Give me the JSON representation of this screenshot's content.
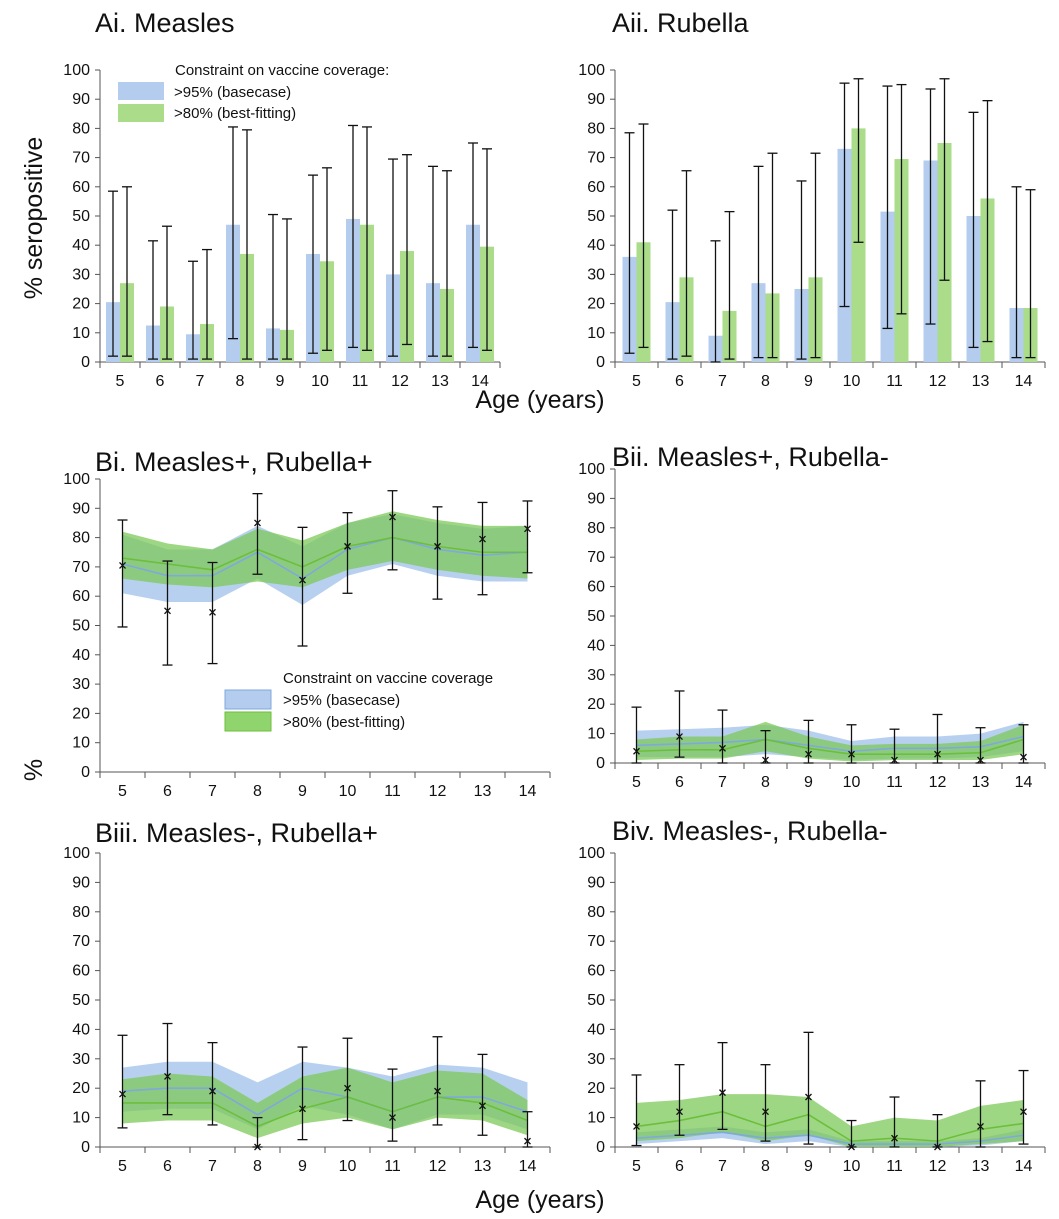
{
  "figure": {
    "ylabel_top": "% seropositive",
    "ylabel_bottom": "%",
    "xlabel_top": "Age (years)",
    "xlabel_bottom": "Age (years)"
  },
  "colors": {
    "basecase": "#b4cdef",
    "bestfit": "#aadc8a",
    "bestfit_band": "#7dc95a",
    "basecase_line": "#7fa8dd",
    "bestfit_line": "#6cbf3c",
    "errorbar": "#111111"
  },
  "legend": {
    "title_bars": "Constraint on vaccine coverage:",
    "title_bands": "Constraint on vaccine coverage",
    "basecase": ">95% (basecase)",
    "bestfit": ">80% (best-fitting)"
  },
  "chart_data": [
    {
      "id": "Ai",
      "type": "bar",
      "title": "Ai. Measles",
      "ylim": [
        0,
        100
      ],
      "categories": [
        "5",
        "6",
        "7",
        "8",
        "9",
        "10",
        "11",
        "12",
        "13",
        "14"
      ],
      "series": [
        {
          "name": ">95% (basecase)",
          "values": [
            20.5,
            12.5,
            9.5,
            47,
            11.5,
            37,
            49,
            30,
            27,
            47
          ],
          "err_low": [
            2,
            1,
            1,
            8,
            1,
            3,
            5,
            2,
            2,
            5
          ],
          "err_high": [
            58.5,
            41.5,
            34.5,
            80.5,
            50.5,
            64,
            81,
            69.5,
            67,
            75
          ]
        },
        {
          "name": ">80% (best-fitting)",
          "values": [
            27,
            19,
            13,
            37,
            11,
            34.5,
            47,
            38,
            25,
            39.5
          ],
          "err_low": [
            2,
            1,
            1,
            1,
            1,
            4,
            4,
            6,
            2,
            4
          ],
          "err_high": [
            60,
            46.5,
            38.5,
            79.5,
            49,
            66.5,
            80.5,
            71,
            65.5,
            73
          ]
        }
      ]
    },
    {
      "id": "Aii",
      "type": "bar",
      "title": "Aii. Rubella",
      "ylim": [
        0,
        100
      ],
      "categories": [
        "5",
        "6",
        "7",
        "8",
        "9",
        "10",
        "11",
        "12",
        "13",
        "14"
      ],
      "series": [
        {
          "name": ">95% (basecase)",
          "values": [
            36,
            20.5,
            9,
            27,
            25,
            73,
            51.5,
            69,
            50,
            18.5
          ],
          "err_low": [
            3,
            1,
            0,
            1.5,
            1,
            19,
            11.5,
            13,
            5,
            1.5
          ],
          "err_high": [
            78.5,
            52,
            41.5,
            67,
            62,
            95.5,
            94.5,
            93.5,
            85.5,
            60
          ]
        },
        {
          "name": ">80% (best-fitting)",
          "values": [
            41,
            29,
            17.5,
            23.5,
            29,
            80,
            69.5,
            75,
            56,
            18.5
          ],
          "err_low": [
            5,
            2,
            1,
            1.5,
            1.5,
            41,
            16.5,
            28,
            7,
            1.5
          ],
          "err_high": [
            81.5,
            65.5,
            51.5,
            71.5,
            71.5,
            97,
            95,
            97,
            89.5,
            59
          ]
        }
      ]
    },
    {
      "id": "Bi",
      "type": "area",
      "title": "Bi. Measles+, Rubella+",
      "ylim": [
        0,
        100
      ],
      "x": [
        5,
        6,
        7,
        8,
        9,
        10,
        11,
        12,
        13,
        14
      ],
      "series": [
        {
          "name": ">95% (basecase)",
          "mid": [
            71,
            67,
            67,
            75,
            66,
            76,
            80,
            76,
            74,
            75
          ],
          "lower": [
            61,
            58,
            58,
            66,
            57,
            67,
            71,
            67,
            65,
            65
          ],
          "upper": [
            81,
            76,
            76,
            84,
            77,
            85,
            88,
            85,
            83,
            84
          ]
        },
        {
          "name": ">80% (best-fitting)",
          "mid": [
            73,
            71,
            69,
            76,
            70,
            77,
            80,
            77,
            75,
            75
          ],
          "lower": [
            66,
            64,
            63,
            65,
            63,
            69,
            72,
            69,
            67,
            66
          ],
          "upper": [
            82,
            78,
            76,
            83,
            79,
            85,
            89,
            86,
            84,
            84
          ]
        }
      ],
      "observed": {
        "values": [
          70.5,
          55,
          54.5,
          85,
          65.5,
          77,
          87,
          77,
          79.5,
          83
        ],
        "lower": [
          49.5,
          36.5,
          37,
          67.5,
          43,
          61,
          69,
          59,
          60.5,
          68
        ],
        "upper": [
          86,
          72,
          71.5,
          95,
          83.5,
          88.5,
          96,
          90.5,
          92,
          92.5
        ]
      }
    },
    {
      "id": "Bii",
      "type": "area",
      "title": "Bii. Measles+, Rubella-",
      "ylim": [
        0,
        100
      ],
      "x": [
        5,
        6,
        7,
        8,
        9,
        10,
        11,
        12,
        13,
        14
      ],
      "series": [
        {
          "name": ">95% (basecase)",
          "mid": [
            6,
            6.5,
            7,
            8,
            6,
            4,
            5,
            5,
            5.5,
            9
          ],
          "lower": [
            2,
            2,
            2,
            3,
            2,
            1,
            1.5,
            1.5,
            2,
            4
          ],
          "upper": [
            11,
            11.5,
            12,
            13,
            11,
            7.5,
            9,
            9,
            10,
            14
          ]
        },
        {
          "name": ">80% (best-fitting)",
          "mid": [
            4,
            4.5,
            4.5,
            8,
            5,
            3,
            3,
            3,
            3.5,
            8
          ],
          "lower": [
            1,
            1.5,
            1.5,
            4,
            1.5,
            0.5,
            1,
            1,
            1,
            3
          ],
          "upper": [
            8,
            9,
            9,
            14,
            9,
            6,
            6.5,
            6.5,
            7.5,
            13
          ]
        }
      ],
      "observed": {
        "values": [
          4,
          9,
          5,
          1,
          3,
          3,
          1,
          3,
          1,
          2
        ],
        "lower": [
          0,
          2,
          0,
          0,
          0,
          0,
          0,
          0,
          0,
          0
        ],
        "upper": [
          19,
          24.5,
          18,
          11,
          14.5,
          13,
          11.5,
          16.5,
          12,
          13
        ]
      }
    },
    {
      "id": "Biii",
      "type": "area",
      "title": "Biii. Measles-, Rubella+",
      "ylim": [
        0,
        100
      ],
      "x": [
        5,
        6,
        7,
        8,
        9,
        10,
        11,
        12,
        13,
        14
      ],
      "series": [
        {
          "name": ">95% (basecase)",
          "mid": [
            19,
            20,
            20,
            11,
            20,
            17,
            12,
            17,
            17,
            12
          ],
          "lower": [
            12,
            13,
            13,
            6,
            14,
            11,
            6,
            11,
            11,
            6
          ],
          "upper": [
            27,
            29,
            29,
            22,
            29,
            27,
            24,
            28,
            27,
            22
          ]
        },
        {
          "name": ">80% (best-fitting)",
          "mid": [
            15,
            15,
            15,
            7,
            13,
            17,
            12,
            17,
            15,
            9
          ],
          "lower": [
            8,
            9,
            9,
            3,
            8,
            10,
            6,
            10,
            9,
            4
          ],
          "upper": [
            23,
            25,
            24,
            15,
            24,
            27,
            22,
            26,
            25,
            16
          ]
        }
      ],
      "observed": {
        "values": [
          18,
          24,
          19,
          0,
          13,
          20,
          10,
          19,
          14,
          2
        ],
        "lower": [
          6.5,
          11,
          7.5,
          0,
          2.5,
          9,
          2,
          7.5,
          4,
          0
        ],
        "upper": [
          38,
          42,
          35.5,
          10,
          34,
          37,
          26.5,
          37.5,
          31.5,
          12
        ]
      }
    },
    {
      "id": "Biv",
      "type": "area",
      "title": "Biv. Measles-, Rubella-",
      "ylim": [
        0,
        100
      ],
      "x": [
        5,
        6,
        7,
        8,
        9,
        10,
        11,
        12,
        13,
        14
      ],
      "series": [
        {
          "name": ">95% (basecase)",
          "mid": [
            3,
            4,
            5,
            3,
            4,
            1,
            1,
            1,
            2,
            4
          ],
          "lower": [
            1,
            2,
            3,
            1,
            2,
            0,
            0,
            0,
            0.5,
            2
          ],
          "upper": [
            5,
            6,
            7,
            5,
            6,
            2,
            2,
            2,
            3,
            6
          ]
        },
        {
          "name": ">80% (best-fitting)",
          "mid": [
            7,
            9,
            12,
            7,
            11,
            2,
            3,
            2,
            6,
            8
          ],
          "lower": [
            2,
            3,
            5,
            2,
            4,
            0,
            0,
            0,
            1,
            2
          ],
          "upper": [
            15,
            16,
            18,
            18,
            17,
            7,
            10,
            9,
            14,
            16
          ]
        }
      ],
      "observed": {
        "values": [
          7,
          12,
          18.5,
          12,
          17,
          0,
          3,
          0,
          7,
          12
        ],
        "lower": [
          0.5,
          4,
          6,
          2,
          1,
          0,
          0,
          0,
          0,
          1
        ],
        "upper": [
          24.5,
          28,
          35.5,
          28,
          39,
          9,
          17,
          11,
          22.5,
          26
        ]
      }
    }
  ]
}
